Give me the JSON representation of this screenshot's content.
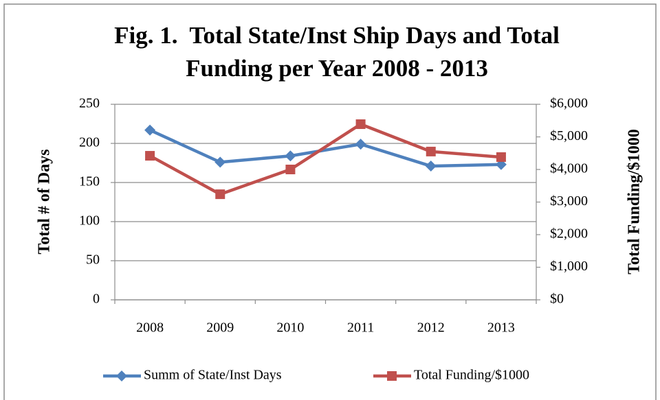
{
  "chart_data": {
    "type": "line",
    "title": "Fig. 1.  Total State/Inst Ship Days and Total Funding per Year 2008 - 2013",
    "categories": [
      "2008",
      "2009",
      "2010",
      "2011",
      "2012",
      "2013"
    ],
    "series": [
      {
        "name": "Summ of State/Inst Days",
        "color": "#4f81bd",
        "marker": "diamond",
        "values": [
          217,
          176,
          184,
          199,
          171,
          173
        ]
      },
      {
        "name": "Total Funding/$1000",
        "color": "#c0504d",
        "marker": "square",
        "axis": "y2",
        "values": [
          4420,
          3240,
          4000,
          5390,
          4550,
          4380
        ]
      }
    ],
    "y_label": "Total # of Days",
    "y2_label": "Total Funding/$1000",
    "ylim": [
      0,
      250
    ],
    "yticks": [
      0,
      50,
      100,
      150,
      200,
      250
    ],
    "y2lim": [
      0,
      6000
    ],
    "y2ticks": [
      {
        "value": 0,
        "label": "$0"
      },
      {
        "value": 1000,
        "label": "$1,000"
      },
      {
        "value": 2000,
        "label": "$2,000"
      },
      {
        "value": 3000,
        "label": "$3,000"
      },
      {
        "value": 4000,
        "label": "$4,000"
      },
      {
        "value": 5000,
        "label": "$5,000"
      },
      {
        "value": 6000,
        "label": "$6,000"
      }
    ],
    "grid": true,
    "legend": "bottom"
  }
}
